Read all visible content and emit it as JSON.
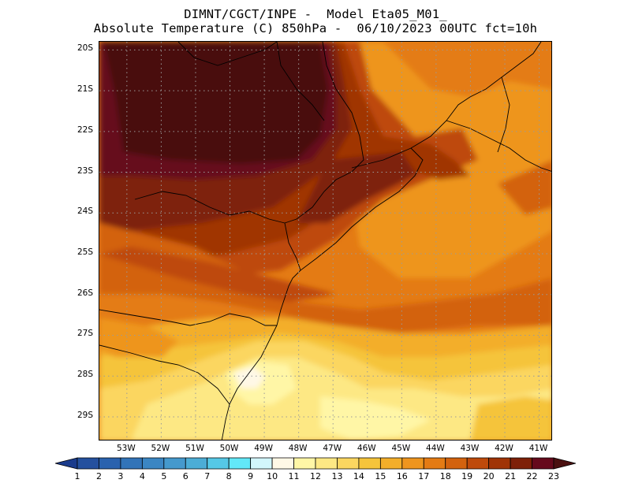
{
  "title": {
    "line1": "DIMNT/CGCT/INPE -  Model Eta05_M01_",
    "line2": "Absolute Temperature (C) 850hPa -  06/10/2023 00UTC fct=10h"
  },
  "map": {
    "region": "southeast-brazil",
    "lon_range": [
      -53.8,
      -40.6
    ],
    "lat_range": [
      -29.6,
      -19.8
    ],
    "grid": "on",
    "y_ticks": [
      "20S",
      "21S",
      "22S",
      "23S",
      "24S",
      "25S",
      "26S",
      "27S",
      "28S",
      "29S"
    ],
    "x_ticks": [
      "53W",
      "52W",
      "51W",
      "50W",
      "49W",
      "48W",
      "47W",
      "46W",
      "45W",
      "44W",
      "43W",
      "42W",
      "41W"
    ]
  },
  "colorbar": {
    "labels": [
      "1",
      "2",
      "3",
      "4",
      "5",
      "6",
      "7",
      "8",
      "9",
      "10",
      "11",
      "12",
      "13",
      "14",
      "15",
      "16",
      "17",
      "18",
      "19",
      "20",
      "21",
      "22",
      "23"
    ],
    "colors": [
      "#1a3b8c",
      "#24509e",
      "#2a62ae",
      "#3274b8",
      "#3b86c3",
      "#4599cd",
      "#4cadd6",
      "#55c8e6",
      "#62e8f8",
      "#d2f6fc",
      "#fff8e6",
      "#fff6a6",
      "#fde884",
      "#fbd660",
      "#f5c43b",
      "#f3ae2a",
      "#ee951e",
      "#e47b14",
      "#d3620e",
      "#be4a0b",
      "#a03406",
      "#7e2008",
      "#660a1c",
      "#4a1010"
    ]
  }
}
